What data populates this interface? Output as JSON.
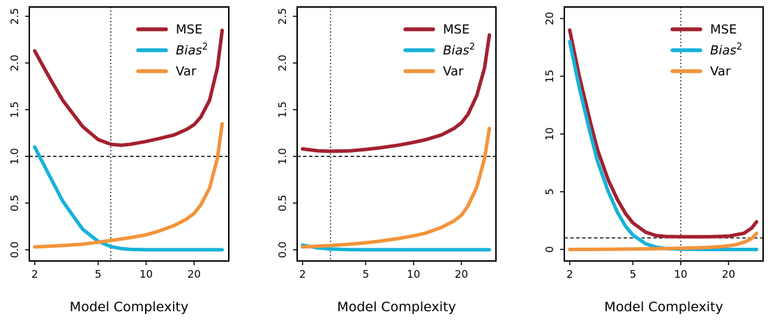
{
  "chart_data": [
    {
      "type": "line",
      "xscale": "log",
      "xlabel": "Model Complexity",
      "ylabel": "",
      "xlim": [
        1.85,
        33
      ],
      "ylim": [
        -0.12,
        2.6
      ],
      "xticks": [
        2,
        5,
        10,
        20
      ],
      "xtick_labels": [
        "2",
        "5",
        "10",
        "20"
      ],
      "yticks": [
        0,
        0.5,
        1,
        1.5,
        2,
        2.5
      ],
      "ytick_labels": [
        "0.0",
        "0.5",
        "1.0",
        "1.5",
        "2.0",
        "2.5"
      ],
      "hline": 1.0,
      "vline": 6,
      "legend_position": "top-right",
      "series": [
        {
          "name": "MSE",
          "color": "#a3202f",
          "x": [
            2,
            2.5,
            3,
            4,
            5,
            6,
            7,
            8,
            10,
            12,
            15,
            18,
            20,
            22,
            25,
            28,
            30
          ],
          "y": [
            2.13,
            1.83,
            1.6,
            1.32,
            1.18,
            1.13,
            1.12,
            1.13,
            1.16,
            1.19,
            1.23,
            1.29,
            1.34,
            1.42,
            1.6,
            1.95,
            2.35
          ]
        },
        {
          "name": "Bias²",
          "color": "#17b2d9",
          "x": [
            2,
            2.5,
            3,
            4,
            5,
            6,
            7,
            8,
            10,
            15,
            20,
            30
          ],
          "y": [
            1.1,
            0.78,
            0.52,
            0.22,
            0.09,
            0.035,
            0.012,
            0.004,
            0.0,
            0.0,
            0.0,
            0.0
          ]
        },
        {
          "name": "Var",
          "color": "#f2943b",
          "x": [
            2,
            3,
            4,
            5,
            6,
            8,
            10,
            12,
            15,
            18,
            20,
            22,
            25,
            28,
            30
          ],
          "y": [
            0.03,
            0.045,
            0.06,
            0.08,
            0.1,
            0.13,
            0.16,
            0.2,
            0.26,
            0.33,
            0.39,
            0.48,
            0.66,
            0.98,
            1.35
          ]
        }
      ]
    },
    {
      "type": "line",
      "xscale": "log",
      "xlabel": "Model Complexity",
      "ylabel": "",
      "xlim": [
        1.85,
        33
      ],
      "ylim": [
        -0.12,
        2.6
      ],
      "xticks": [
        2,
        5,
        10,
        20
      ],
      "xtick_labels": [
        "2",
        "5",
        "10",
        "20"
      ],
      "yticks": [
        0,
        0.5,
        1,
        1.5,
        2,
        2.5
      ],
      "ytick_labels": [
        "0.0",
        "0.5",
        "1.0",
        "1.5",
        "2.0",
        "2.5"
      ],
      "hline": 1.0,
      "vline": 3,
      "legend_position": "top-right",
      "series": [
        {
          "name": "MSE",
          "color": "#a3202f",
          "x": [
            2,
            2.5,
            3,
            4,
            5,
            6,
            8,
            10,
            12,
            15,
            18,
            20,
            22,
            25,
            28,
            30
          ],
          "y": [
            1.08,
            1.06,
            1.055,
            1.06,
            1.075,
            1.09,
            1.12,
            1.15,
            1.18,
            1.23,
            1.3,
            1.36,
            1.45,
            1.65,
            1.95,
            2.3
          ]
        },
        {
          "name": "Bias²",
          "color": "#17b2d9",
          "x": [
            2,
            2.5,
            3,
            4,
            5,
            6,
            8,
            10,
            15,
            20,
            30
          ],
          "y": [
            0.05,
            0.02,
            0.008,
            0.002,
            0.0,
            0.0,
            0.0,
            0.0,
            0.0,
            0.0,
            0.0
          ]
        },
        {
          "name": "Var",
          "color": "#f2943b",
          "x": [
            2,
            3,
            4,
            5,
            6,
            8,
            10,
            12,
            15,
            18,
            20,
            22,
            25,
            28,
            30
          ],
          "y": [
            0.03,
            0.045,
            0.06,
            0.075,
            0.09,
            0.12,
            0.15,
            0.18,
            0.24,
            0.31,
            0.37,
            0.47,
            0.67,
            0.98,
            1.3
          ]
        }
      ]
    },
    {
      "type": "line",
      "xscale": "log",
      "xlabel": "Model Complexity",
      "ylabel": "",
      "xlim": [
        1.85,
        33
      ],
      "ylim": [
        -1.0,
        21
      ],
      "xticks": [
        2,
        5,
        10,
        20
      ],
      "xtick_labels": [
        "2",
        "5",
        "10",
        "20"
      ],
      "yticks": [
        0,
        5,
        10,
        15,
        20
      ],
      "ytick_labels": [
        "0",
        "5",
        "10",
        "15",
        "20"
      ],
      "hline": 1.0,
      "vline": 10,
      "legend_position": "top-right",
      "series": [
        {
          "name": "MSE",
          "color": "#a3202f",
          "x": [
            2,
            2.3,
            2.7,
            3,
            3.5,
            4,
            4.5,
            5,
            6,
            7,
            8,
            10,
            12,
            15,
            20,
            25,
            28,
            30
          ],
          "y": [
            19.0,
            15.0,
            11.0,
            8.6,
            6.0,
            4.3,
            3.1,
            2.3,
            1.5,
            1.2,
            1.12,
            1.1,
            1.1,
            1.1,
            1.15,
            1.4,
            1.85,
            2.4
          ]
        },
        {
          "name": "Bias²",
          "color": "#17b2d9",
          "x": [
            2,
            2.3,
            2.7,
            3,
            3.5,
            4,
            4.5,
            5,
            6,
            7,
            8,
            10,
            15,
            20,
            30
          ],
          "y": [
            18.0,
            14.0,
            10.0,
            7.6,
            5.0,
            3.2,
            2.0,
            1.25,
            0.5,
            0.2,
            0.08,
            0.02,
            0.0,
            0.0,
            0.0
          ]
        },
        {
          "name": "Var",
          "color": "#f2943b",
          "x": [
            2,
            4,
            6,
            8,
            10,
            12,
            15,
            18,
            20,
            22,
            25,
            28,
            30
          ],
          "y": [
            0.0,
            0.02,
            0.05,
            0.07,
            0.1,
            0.13,
            0.18,
            0.25,
            0.31,
            0.4,
            0.62,
            0.95,
            1.4
          ]
        }
      ]
    }
  ]
}
